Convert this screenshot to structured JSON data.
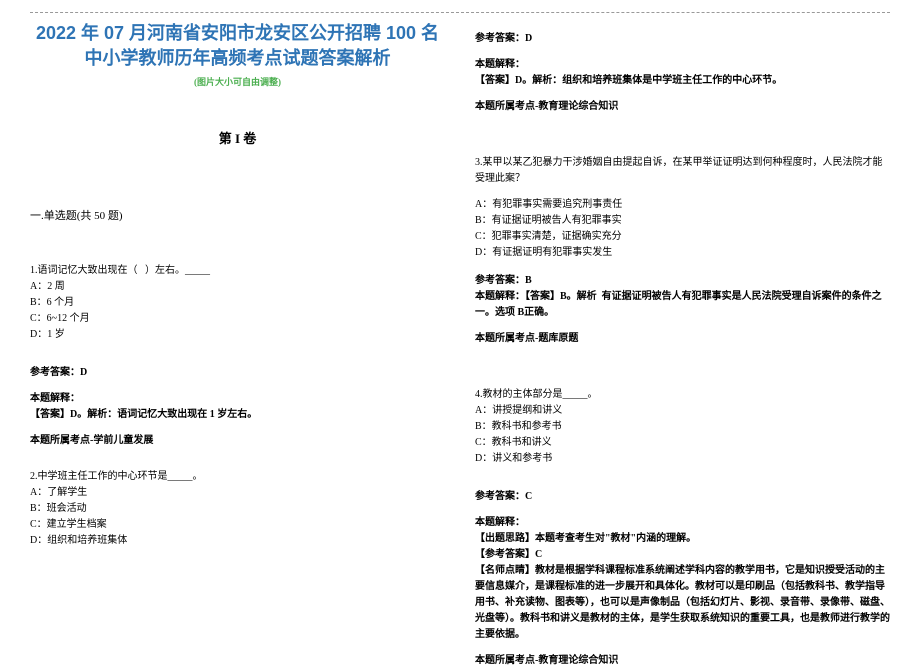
{
  "colors": {
    "title": "#2e74b5",
    "subtitle": "#4caf50",
    "text": "#000000",
    "hr": "#999999",
    "background": "#ffffff"
  },
  "fonts": {
    "title_size": 18,
    "subtitle_size": 9,
    "body_size": 10,
    "section_size": 13
  },
  "header": {
    "title": "2022 年 07 月河南省安阳市龙安区公开招聘 100 名中小学教师历年高频考点试题答案解析",
    "subtitle": "(图片大小可自由调整)"
  },
  "section_label": "第 I 卷",
  "part_label": "一.单选题(共 50 题)",
  "q1": {
    "stem": "1.语词记忆大致出现在（   ）左右。_____",
    "A": "A：2 周",
    "B": "B：6 个月",
    "C": "C：6~12 个月",
    "D": "D：1 岁",
    "ans_label": "参考答案：D",
    "exp_label": "本题解释：",
    "exp": "【答案】D。解析：语词记忆大致出现在 1 岁左右。",
    "topic": "本题所属考点-学前儿童发展"
  },
  "q2": {
    "stem": "2.中学班主任工作的中心环节是_____。",
    "A": "A：了解学生",
    "B": "B：班会活动",
    "C": "C：建立学生档案",
    "D": "D：组织和培养班集体",
    "ans_label": "参考答案：D",
    "exp_label": "本题解释：",
    "exp": "【答案】D。解析：组织和培养班集体是中学班主任工作的中心环节。",
    "topic": "本题所属考点-教育理论综合知识"
  },
  "q3": {
    "stem": "3.某甲以某乙犯暴力干涉婚姻自由提起自诉，在某甲举证证明达到何种程度时，人民法院才能受理此案？",
    "A": "A：有犯罪事实需要追究刑事责任",
    "B": "B：有证据证明被告人有犯罪事实",
    "C": "C：犯罪事实清楚，证据确实充分",
    "D": "D：有证据证明有犯罪事实发生",
    "ans_label": "参考答案：B",
    "exp_line1": "本题解释：【答案】B。解析  有证据证明被告人有犯罪事实是人民法院受理自诉案件的条件之一。选项 B正确。",
    "topic": "本题所属考点-题库原题"
  },
  "q4": {
    "stem": "4.教材的主体部分是_____。",
    "A": "A：讲授提纲和讲义",
    "B": "B：教科书和参考书",
    "C": "C：教科书和讲义",
    "D": "D：讲义和参考书",
    "ans_label": "参考答案：C",
    "exp_label": "本题解释：",
    "exp1": "【出题思路】本题考查考生对\"教材\"内涵的理解。",
    "exp2": "【参考答案】C",
    "exp3": "【名师点睛】教材是根据学科课程标准系统阐述学科内容的教学用书，它是知识授受活动的主要信息媒介，是课程标准的进一步展开和具体化。教材可以是印刷品（包括教科书、教学指导用书、补充读物、图表等），也可以是声像制品（包括幻灯片、影视、录音带、录像带、磁盘、光盘等）。教科书和讲义是教材的主体，是学生获取系统知识的重要工具，也是教师进行教学的主要依据。",
    "topic": "本题所属考点-教育理论综合知识"
  }
}
